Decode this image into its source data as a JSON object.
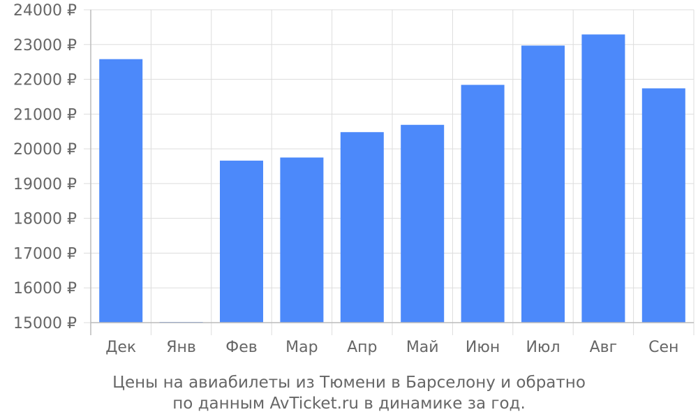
{
  "chart_data": {
    "type": "bar",
    "categories": [
      "Дек",
      "Янв",
      "Фев",
      "Мар",
      "Апр",
      "Май",
      "Июн",
      "Июл",
      "Авг",
      "Сен"
    ],
    "values": [
      22580,
      15000,
      19660,
      19750,
      20480,
      20690,
      21840,
      22970,
      23290,
      21740
    ],
    "ylim": [
      15000,
      24000
    ],
    "yticks": [
      15000,
      16000,
      17000,
      18000,
      19000,
      20000,
      21000,
      22000,
      23000,
      24000
    ],
    "ytick_suffix": " ₽",
    "grid": true,
    "bar_color": "#4c89fa",
    "grid_color": "#dddddd",
    "axis_color": "#bbbbbb",
    "text_color": "#666666"
  },
  "caption": {
    "line1": "Цены на авиабилеты из Тюмени в Барселону и обратно",
    "line2": "по данным AvTicket.ru в динамике за год."
  }
}
